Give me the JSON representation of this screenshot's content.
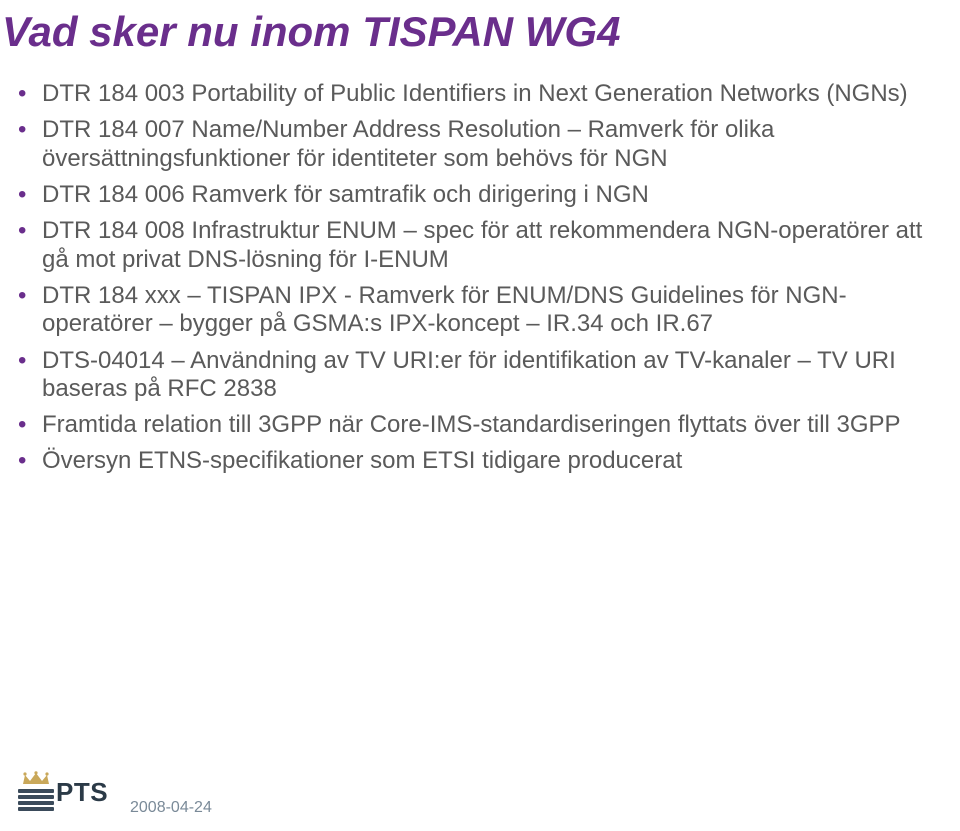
{
  "colors": {
    "title": "#6a2e8c",
    "body_text": "#5a5a5a",
    "bullet": "#6a2e8c",
    "logo_crown": "#c9a85a",
    "logo_stripe": "#3a4a5a",
    "logo_text": "#2b3a47",
    "date": "#7a8a98",
    "background": "#ffffff"
  },
  "typography": {
    "title_fontsize": 42,
    "body_fontsize": 24,
    "logo_fontsize": 26,
    "date_fontsize": 16,
    "title_weight": "bold",
    "title_style": "italic"
  },
  "layout": {
    "bullet_gap": 8
  },
  "title": "Vad sker nu inom TISPAN WG4",
  "bullets": [
    "DTR 184 003 Portability of Public Identifiers in Next Generation Networks (NGNs)",
    "DTR 184 007 Name/Number Address Resolution – Ramverk för olika översättningsfunktioner för identiteter som behövs för NGN",
    "DTR 184 006 Ramverk för samtrafik och dirigering i NGN",
    "DTR 184 008 Infrastruktur ENUM – spec för att rekommendera NGN-operatörer att gå mot privat DNS-lösning för I-ENUM",
    "DTR 184 xxx – TISPAN IPX - Ramverk för ENUM/DNS Guidelines för NGN-operatörer – bygger på GSMA:s IPX-koncept – IR.34 och IR.67",
    "DTS-04014 – Användning av TV URI:er för identifikation av TV-kanaler – TV URI baseras på RFC 2838",
    "Framtida relation till 3GPP när Core-IMS-standardiseringen flyttats över till 3GPP",
    "Översyn ETNS-specifikationer som ETSI tidigare producerat"
  ],
  "logo": {
    "text": "PTS"
  },
  "date": "2008-04-24"
}
